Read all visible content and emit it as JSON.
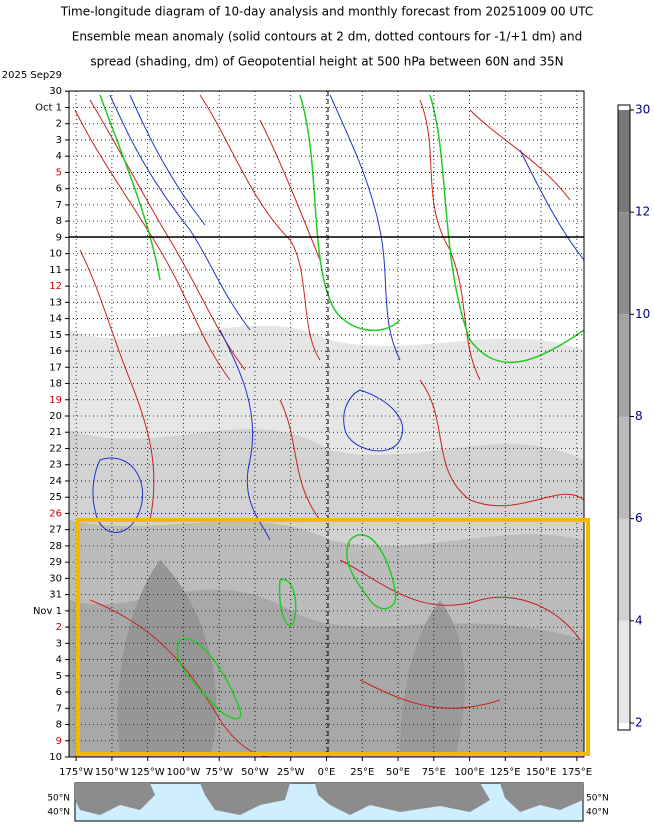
{
  "chart_data": {
    "type": "hovmoller",
    "title_lines": [
      "Time-longitude diagram of 10-day analysis and monthly forecast from 20251009 00 UTC",
      "Ensemble mean anomaly (solid contours at 2 dm, dotted contours for -1/+1 dm) and",
      "spread (shading, dm) of Geopotential height at 500 hPa between 60N and 35N"
    ],
    "y_labels": [
      {
        "label": "2025 Sep29",
        "color": "#000000"
      },
      {
        "label": "30",
        "color": "#000000"
      },
      {
        "label": "Oct  1",
        "color": "#000000"
      },
      {
        "label": "2",
        "color": "#000000"
      },
      {
        "label": "3",
        "color": "#000000"
      },
      {
        "label": "4",
        "color": "#000000"
      },
      {
        "label": "5",
        "color": "#cc0000"
      },
      {
        "label": "6",
        "color": "#000000"
      },
      {
        "label": "7",
        "color": "#000000"
      },
      {
        "label": "8",
        "color": "#000000"
      },
      {
        "label": "9",
        "color": "#000000"
      },
      {
        "label": "10",
        "color": "#000000"
      },
      {
        "label": "11",
        "color": "#000000"
      },
      {
        "label": "12",
        "color": "#cc0000"
      },
      {
        "label": "13",
        "color": "#000000"
      },
      {
        "label": "14",
        "color": "#000000"
      },
      {
        "label": "15",
        "color": "#000000"
      },
      {
        "label": "16",
        "color": "#000000"
      },
      {
        "label": "17",
        "color": "#000000"
      },
      {
        "label": "18",
        "color": "#000000"
      },
      {
        "label": "19",
        "color": "#cc0000"
      },
      {
        "label": "20",
        "color": "#000000"
      },
      {
        "label": "21",
        "color": "#000000"
      },
      {
        "label": "22",
        "color": "#000000"
      },
      {
        "label": "23",
        "color": "#000000"
      },
      {
        "label": "24",
        "color": "#000000"
      },
      {
        "label": "25",
        "color": "#000000"
      },
      {
        "label": "26",
        "color": "#cc0000"
      },
      {
        "label": "27",
        "color": "#000000"
      },
      {
        "label": "28",
        "color": "#000000"
      },
      {
        "label": "29",
        "color": "#000000"
      },
      {
        "label": "30",
        "color": "#000000"
      },
      {
        "label": "31",
        "color": "#000000"
      },
      {
        "label": "Nov  1",
        "color": "#000000"
      },
      {
        "label": "2",
        "color": "#cc0000"
      },
      {
        "label": "3",
        "color": "#000000"
      },
      {
        "label": "4",
        "color": "#000000"
      },
      {
        "label": "5",
        "color": "#000000"
      },
      {
        "label": "6",
        "color": "#000000"
      },
      {
        "label": "7",
        "color": "#000000"
      },
      {
        "label": "8",
        "color": "#000000"
      },
      {
        "label": "9",
        "color": "#cc0000"
      },
      {
        "label": "10",
        "color": "#000000"
      }
    ],
    "xlim": [
      -180,
      180
    ],
    "xticks": [
      {
        "value": -175,
        "label": "175°W"
      },
      {
        "value": -150,
        "label": "150°W"
      },
      {
        "value": -125,
        "label": "125°W"
      },
      {
        "value": -100,
        "label": "100°W"
      },
      {
        "value": -75,
        "label": "75°W"
      },
      {
        "value": -50,
        "label": "50°W"
      },
      {
        "value": -25,
        "label": "25°W"
      },
      {
        "value": 0,
        "label": "0°E"
      },
      {
        "value": 25,
        "label": "25°E"
      },
      {
        "value": 50,
        "label": "50°E"
      },
      {
        "value": 75,
        "label": "75°E"
      },
      {
        "value": 100,
        "label": "100°E"
      },
      {
        "value": 125,
        "label": "125°E"
      },
      {
        "value": 150,
        "label": "150°E"
      },
      {
        "value": 175,
        "label": "175°E"
      }
    ],
    "grid": true,
    "colorbar_ticks": [
      30,
      12,
      10,
      8,
      6,
      4,
      2
    ],
    "colorbar_label_color": "#000080",
    "map_lat_labels": [
      "50°N",
      "40°N"
    ]
  }
}
